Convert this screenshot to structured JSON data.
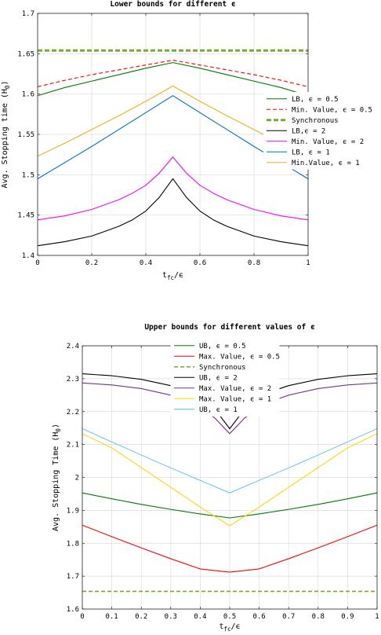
{
  "chart_data": [
    {
      "type": "line",
      "title": "Lower bounds for different ϵ",
      "xlabel": "t_fc/ϵ",
      "xlabel_main": "t",
      "xlabel_sub": "fc",
      "xlabel_tail": "/ϵ",
      "ylabel": "Avg. Stopping time (H_0)",
      "xlim": [
        0,
        1
      ],
      "ylim": [
        1.4,
        1.7
      ],
      "xticks": [
        0,
        0.2,
        0.4,
        0.6,
        0.8,
        1
      ],
      "xtick_labels": [
        "0",
        "0.2",
        "0.4",
        "0.6",
        "0.8",
        "1"
      ],
      "yticks": [
        1.4,
        1.45,
        1.5,
        1.55,
        1.6,
        1.65,
        1.7
      ],
      "ytick_labels": [
        "1.4",
        "1.45",
        "1.5",
        "1.55",
        "1.6",
        "1.65",
        "1.7"
      ],
      "grid": true,
      "legend_position": "right",
      "series": [
        {
          "name": "LB, ϵ = 0.5",
          "color": "#007a00",
          "dash": "solid",
          "width": 1.1,
          "x": [
            0,
            0.1,
            0.2,
            0.3,
            0.4,
            0.5,
            0.6,
            0.7,
            0.8,
            0.9,
            1.0
          ],
          "y": [
            1.598,
            1.608,
            1.616,
            1.624,
            1.632,
            1.639,
            1.632,
            1.624,
            1.616,
            1.608,
            1.598
          ]
        },
        {
          "name": "Min. Value, ϵ = 0.5",
          "color": "#ff0000",
          "dash": "dashed",
          "width": 1.1,
          "x": [
            0,
            0.1,
            0.2,
            0.3,
            0.4,
            0.5,
            0.6,
            0.7,
            0.8,
            0.9,
            1.0
          ],
          "y": [
            1.609,
            1.617,
            1.624,
            1.63,
            1.636,
            1.642,
            1.636,
            1.63,
            1.624,
            1.617,
            1.609
          ]
        },
        {
          "name": "Synchronous",
          "color": "#77ac30",
          "dash": "thickdash",
          "width": 3,
          "x": [
            0,
            1
          ],
          "y": [
            1.654,
            1.654
          ]
        },
        {
          "name": "LB,ϵ = 2",
          "color": "#000000",
          "dash": "solid",
          "width": 1.1,
          "x": [
            0,
            0.1,
            0.2,
            0.3,
            0.35,
            0.4,
            0.45,
            0.5,
            0.55,
            0.6,
            0.65,
            0.7,
            0.8,
            0.9,
            1.0
          ],
          "y": [
            1.412,
            1.417,
            1.424,
            1.436,
            1.444,
            1.455,
            1.472,
            1.495,
            1.472,
            1.455,
            1.444,
            1.436,
            1.424,
            1.417,
            1.412
          ]
        },
        {
          "name": "Min. Value, ϵ = 2",
          "color": "#ff00ff",
          "dash": "solid",
          "width": 1.1,
          "x": [
            0,
            0.1,
            0.2,
            0.3,
            0.35,
            0.4,
            0.45,
            0.5,
            0.55,
            0.6,
            0.65,
            0.7,
            0.8,
            0.9,
            1.0
          ],
          "y": [
            1.444,
            1.449,
            1.457,
            1.469,
            1.477,
            1.487,
            1.502,
            1.522,
            1.502,
            1.487,
            1.477,
            1.469,
            1.457,
            1.449,
            1.444
          ]
        },
        {
          "name": "LB, ϵ = 1",
          "color": "#0072bd",
          "dash": "solid",
          "width": 1.1,
          "x": [
            0,
            0.1,
            0.2,
            0.3,
            0.4,
            0.5,
            0.6,
            0.7,
            0.8,
            0.9,
            1.0
          ],
          "y": [
            1.495,
            1.515,
            1.535,
            1.556,
            1.577,
            1.598,
            1.577,
            1.556,
            1.535,
            1.515,
            1.495
          ]
        },
        {
          "name": "Min.Value, ϵ = 1",
          "color": "#edb120",
          "dash": "solid",
          "width": 1.1,
          "x": [
            0,
            0.1,
            0.2,
            0.3,
            0.4,
            0.5,
            0.6,
            0.7,
            0.8,
            0.9,
            1.0
          ],
          "y": [
            1.523,
            1.539,
            1.556,
            1.573,
            1.591,
            1.61,
            1.591,
            1.573,
            1.556,
            1.539,
            1.523
          ]
        }
      ]
    },
    {
      "type": "line",
      "title": "Upper bounds for different values of ϵ",
      "xlabel": "t_fc/ϵ",
      "xlabel_main": "t",
      "xlabel_sub": "fc",
      "xlabel_tail": "/ϵ",
      "ylabel": "Avg. Stopping Time (H_0)",
      "xlim": [
        0,
        1
      ],
      "ylim": [
        1.6,
        2.4
      ],
      "xticks": [
        0,
        0.1,
        0.2,
        0.3,
        0.4,
        0.5,
        0.6,
        0.7,
        0.8,
        0.9,
        1
      ],
      "xtick_labels": [
        "0",
        "0.1",
        "0.2",
        "0.3",
        "0.4",
        "0.5",
        "0.6",
        "0.7",
        "0.8",
        "0.9",
        "1"
      ],
      "yticks": [
        1.6,
        1.7,
        1.8,
        1.9,
        2.0,
        2.1,
        2.2,
        2.3,
        2.4
      ],
      "ytick_labels": [
        "1.6",
        "1.7",
        "1.8",
        "1.9",
        "2",
        "2.1",
        "2.2",
        "2.3",
        "2.4"
      ],
      "grid": true,
      "legend_position": "top-center",
      "series": [
        {
          "name": "UB, ϵ = 0.5",
          "color": "#007a00",
          "dash": "solid",
          "width": 1.1,
          "x": [
            0,
            0.1,
            0.2,
            0.3,
            0.4,
            0.5,
            0.6,
            0.7,
            0.8,
            0.9,
            1.0
          ],
          "y": [
            1.953,
            1.935,
            1.918,
            1.903,
            1.889,
            1.877,
            1.889,
            1.903,
            1.918,
            1.935,
            1.953
          ]
        },
        {
          "name": "Max. Value, ϵ = 0.5",
          "color": "#ff0000",
          "dash": "solid",
          "width": 1.1,
          "x": [
            0,
            0.1,
            0.2,
            0.3,
            0.4,
            0.5,
            0.6,
            0.7,
            0.8,
            0.9,
            1.0
          ],
          "y": [
            1.855,
            1.82,
            1.786,
            1.753,
            1.722,
            1.712,
            1.722,
            1.753,
            1.786,
            1.82,
            1.855
          ]
        },
        {
          "name": "Synchronous",
          "color": "#77ac30",
          "dash": "dashed",
          "width": 1.6,
          "x": [
            0,
            1
          ],
          "y": [
            1.654,
            1.654
          ]
        },
        {
          "name": "UB, ϵ = 2",
          "color": "#000000",
          "dash": "solid",
          "width": 1.1,
          "x": [
            0,
            0.1,
            0.2,
            0.3,
            0.35,
            0.4,
            0.45,
            0.5,
            0.55,
            0.6,
            0.65,
            0.7,
            0.8,
            0.9,
            1.0
          ],
          "y": [
            2.315,
            2.309,
            2.298,
            2.279,
            2.264,
            2.241,
            2.207,
            2.148,
            2.207,
            2.241,
            2.264,
            2.279,
            2.298,
            2.309,
            2.315
          ]
        },
        {
          "name": "Max. Value, ϵ = 2",
          "color": "#7e2f8e",
          "dash": "solid",
          "width": 1.1,
          "x": [
            0,
            0.1,
            0.2,
            0.3,
            0.35,
            0.4,
            0.45,
            0.5,
            0.55,
            0.6,
            0.65,
            0.7,
            0.8,
            0.9,
            1.0
          ],
          "y": [
            2.287,
            2.281,
            2.27,
            2.25,
            2.234,
            2.213,
            2.18,
            2.133,
            2.18,
            2.213,
            2.234,
            2.25,
            2.27,
            2.281,
            2.287
          ]
        },
        {
          "name": "Max. Value, ϵ = 1",
          "color": "#ffd700",
          "dash": "solid",
          "width": 1.1,
          "x": [
            0,
            0.1,
            0.2,
            0.3,
            0.4,
            0.5,
            0.6,
            0.7,
            0.8,
            0.9,
            1.0
          ],
          "y": [
            2.133,
            2.09,
            2.03,
            1.97,
            1.91,
            1.853,
            1.91,
            1.97,
            2.03,
            2.09,
            2.133
          ]
        },
        {
          "name": "UB, ϵ = 1",
          "color": "#4dbeee",
          "dash": "solid",
          "width": 0.9,
          "x": [
            0,
            0.1,
            0.2,
            0.3,
            0.4,
            0.5,
            0.6,
            0.7,
            0.8,
            0.9,
            1.0
          ],
          "y": [
            2.148,
            2.108,
            2.068,
            2.029,
            1.991,
            1.953,
            1.991,
            2.029,
            2.068,
            2.108,
            2.148
          ]
        }
      ]
    }
  ]
}
